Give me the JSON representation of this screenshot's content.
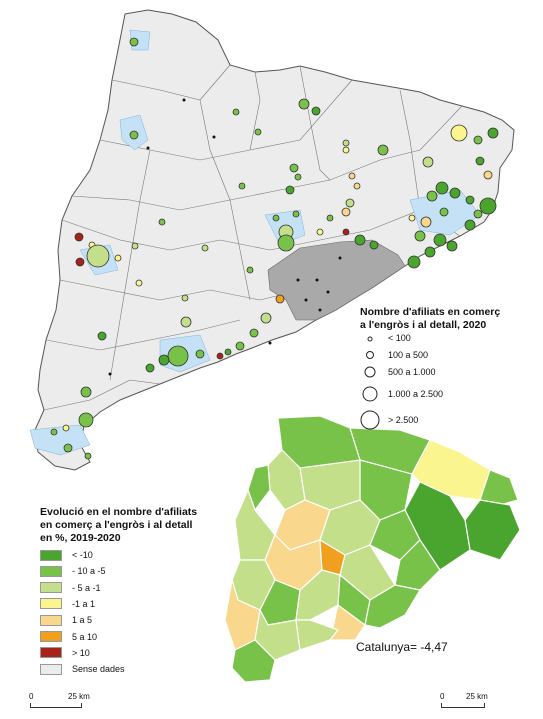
{
  "size_legend": {
    "title_line1": "Nombre d'afiliats en comerç",
    "title_line2": "a l'engròs i al detall, 2020",
    "items": [
      "< 100",
      "100 a 500",
      "500 a 1.000",
      "1.000 a 2.500",
      "> 2.500"
    ]
  },
  "color_legend": {
    "title_line1": "Evolució en el nombre d'afiliats",
    "title_line2": "en comerç a l'engròs i al detall",
    "title_line3": "en %, 2019-2020",
    "items": [
      {
        "label": "< -10",
        "color": "#4aa52e"
      },
      {
        "label": "- 10 a -5",
        "color": "#79c24a"
      },
      {
        "label": "- 5 a -1",
        "color": "#c3df8a"
      },
      {
        "label": "-1 a 1",
        "color": "#fbf58f"
      },
      {
        "label": "1 a 5",
        "color": "#f9d78c"
      },
      {
        "label": "5 a 10",
        "color": "#f0a01e"
      },
      {
        "label": "> 10",
        "color": "#a8221b"
      },
      {
        "label": "Sense dades",
        "color": "#ececec"
      }
    ]
  },
  "catalunya_summary": "Catalunya= -4,47",
  "scale_left": {
    "zero": "0",
    "distance": "25 km"
  },
  "scale_right": {
    "zero": "0",
    "distance": "25 km"
  }
}
